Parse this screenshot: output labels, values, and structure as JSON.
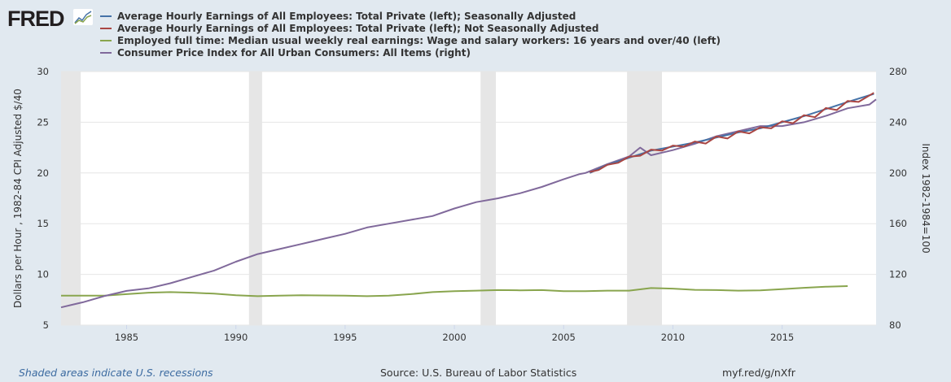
{
  "logo": "FRED",
  "footer": {
    "recession_note": "Shaded areas indicate U.S. recessions",
    "source": "Source: U.S. Bureau of Labor Statistics",
    "link": "myf.red/g/nXfr"
  },
  "chart_data": {
    "type": "line",
    "xlim": [
      1982.0,
      2019.3
    ],
    "x_ticks": [
      "1985",
      "1990",
      "1995",
      "2000",
      "2005",
      "2010",
      "2015"
    ],
    "y_left": {
      "label": "Dollars per Hour , 1982-84 CPI Adjusted $/40",
      "lim": [
        5,
        30
      ],
      "ticks": [
        "5",
        "10",
        "15",
        "20",
        "25",
        "30"
      ]
    },
    "y_right": {
      "label": "Index 1982-1984=100",
      "lim": [
        80,
        280
      ],
      "ticks": [
        "80",
        "120",
        "160",
        "200",
        "240",
        "280"
      ]
    },
    "grid": true,
    "legend_placement": "top",
    "recessions": [
      [
        1981.5,
        1982.9
      ],
      [
        1990.6,
        1991.2
      ],
      [
        2001.2,
        2001.9
      ],
      [
        2007.9,
        2009.5
      ]
    ],
    "series": [
      {
        "name": "Average Hourly Earnings of All Employees: Total Private (left); Seasonally Adjusted",
        "color": "#4572a7",
        "axis": "left",
        "x": [
          2006.2,
          2007,
          2008,
          2009,
          2010,
          2011,
          2012,
          2013,
          2014,
          2015,
          2016,
          2017,
          2018,
          2019.2
        ],
        "y": [
          20.0,
          20.8,
          21.5,
          22.2,
          22.6,
          23.0,
          23.5,
          24.0,
          24.4,
          25.0,
          25.6,
          26.3,
          27.0,
          27.8
        ]
      },
      {
        "name": "Average Hourly Earnings of All Employees: Total Private (left); Not Seasonally Adjusted",
        "color": "#aa4643",
        "axis": "left",
        "x": [
          2006.2,
          2006.6,
          2007,
          2007.5,
          2008,
          2008.5,
          2009,
          2009.5,
          2010,
          2010.5,
          2011,
          2011.5,
          2012,
          2012.5,
          2013,
          2013.5,
          2014,
          2014.5,
          2015,
          2015.5,
          2016,
          2016.5,
          2017,
          2017.5,
          2018,
          2018.5,
          2019.2
        ],
        "y": [
          20.1,
          20.3,
          20.8,
          21.0,
          21.6,
          21.7,
          22.3,
          22.2,
          22.7,
          22.6,
          23.1,
          22.9,
          23.6,
          23.4,
          24.1,
          23.9,
          24.5,
          24.4,
          25.1,
          24.9,
          25.7,
          25.5,
          26.4,
          26.2,
          27.1,
          27.0,
          27.9
        ]
      },
      {
        "name": "Employed full time: Median usual weekly real earnings: Wage and salary workers: 16 years and over/40 (left)",
        "color": "#89a54e",
        "axis": "left",
        "x": [
          1982,
          1984,
          1985,
          1986,
          1987,
          1988,
          1989,
          1990,
          1991,
          1992,
          1993,
          1995,
          1996,
          1997,
          1998,
          1999,
          2000,
          2001,
          2002,
          2003,
          2004,
          2005,
          2006,
          2007,
          2008,
          2009,
          2010,
          2011,
          2012,
          2013,
          2014,
          2015,
          2016,
          2017,
          2018
        ],
        "y": [
          7.9,
          7.9,
          8.05,
          8.2,
          8.25,
          8.2,
          8.1,
          7.95,
          7.85,
          7.9,
          7.95,
          7.9,
          7.85,
          7.9,
          8.05,
          8.25,
          8.35,
          8.4,
          8.45,
          8.43,
          8.45,
          8.35,
          8.35,
          8.4,
          8.4,
          8.65,
          8.6,
          8.48,
          8.45,
          8.4,
          8.42,
          8.55,
          8.68,
          8.78,
          8.85
        ]
      },
      {
        "name": "Consumer Price Index for All Urban Consumers: All Items (right)",
        "color": "#80699b",
        "axis": "right",
        "x": [
          1982,
          1982.5,
          1983,
          1984,
          1985,
          1986,
          1987,
          1988,
          1989,
          1990,
          1991,
          1992,
          1993,
          1994,
          1995,
          1996,
          1997,
          1998,
          1999,
          2000,
          2001,
          2002,
          2003,
          2004,
          2005,
          2005.7,
          2006,
          2007,
          2008,
          2008.5,
          2009,
          2010,
          2011,
          2012,
          2013,
          2014,
          2015,
          2016,
          2017,
          2018,
          2019,
          2019.3
        ],
        "y": [
          94,
          96,
          98,
          103,
          107,
          109,
          113,
          118,
          123,
          130,
          136,
          140,
          144,
          148,
          152,
          157,
          160,
          163,
          166,
          172,
          177,
          180,
          184,
          189,
          195,
          199,
          200,
          207,
          213,
          220,
          214,
          218,
          223,
          229,
          233,
          237,
          237,
          240,
          245,
          251,
          254,
          258
        ]
      }
    ]
  }
}
